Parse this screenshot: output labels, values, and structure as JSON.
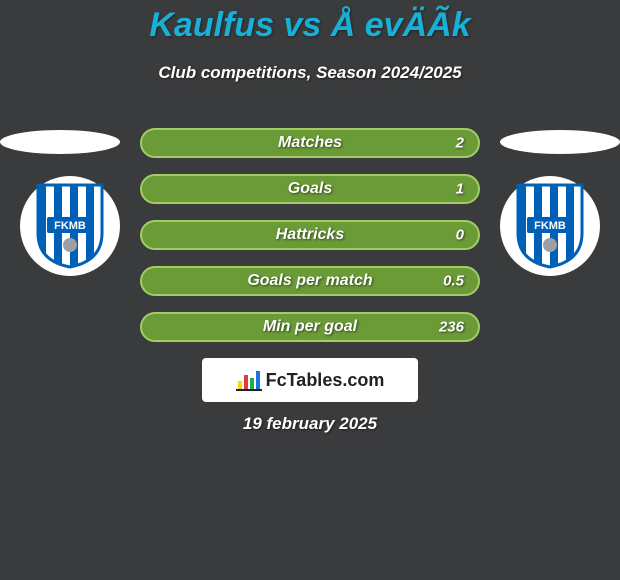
{
  "title": "Kaulfus vs Å evÄÃ­k",
  "subtitle": "Club competitions, Season 2024/2025",
  "bars": [
    {
      "label": "Matches",
      "value_right": "2",
      "color": "#6a9b36",
      "border": "#a3cc66"
    },
    {
      "label": "Goals",
      "value_right": "1",
      "color": "#6a9b36",
      "border": "#a3cc66"
    },
    {
      "label": "Hattricks",
      "value_right": "0",
      "color": "#6a9b36",
      "border": "#a3cc66"
    },
    {
      "label": "Goals per match",
      "value_right": "0.5",
      "color": "#6a9b36",
      "border": "#a3cc66"
    },
    {
      "label": "Min per goal",
      "value_right": "236",
      "color": "#6a9b36",
      "border": "#a3cc66"
    }
  ],
  "brand_label": "FcTables.com",
  "date_line": "19 february 2025",
  "club_badge": {
    "outer_stripe": "#0060b8",
    "inner": "#ffffff",
    "text": "FKMB"
  },
  "colors": {
    "background": "#3a3b3c",
    "title": "#18b0d6",
    "text": "#ffffff"
  }
}
